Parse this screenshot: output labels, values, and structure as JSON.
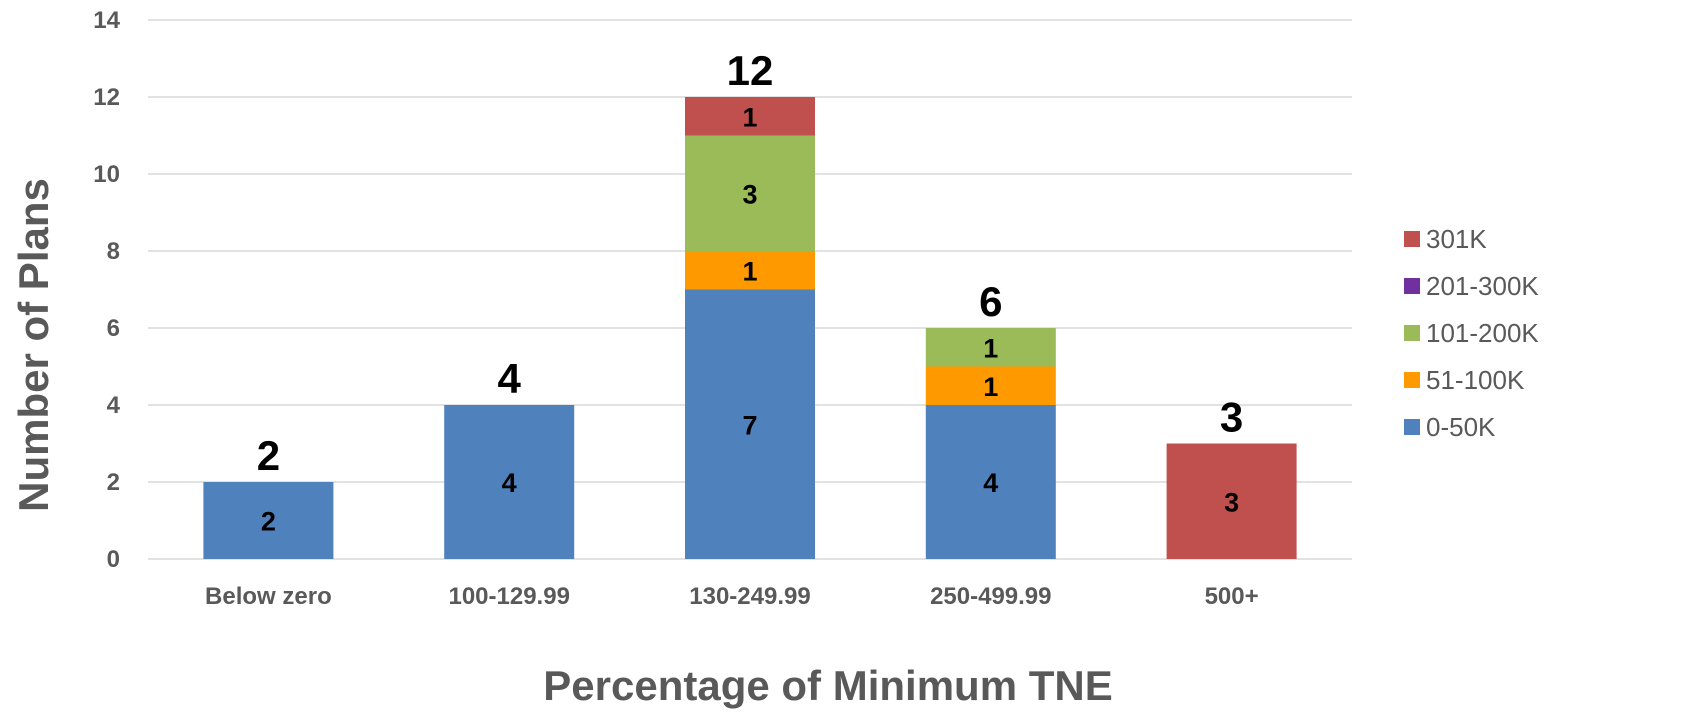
{
  "chart_data": {
    "type": "bar",
    "stacked": true,
    "categories": [
      "Below zero",
      "100-129.99",
      "130-249.99",
      "250-499.99",
      "500+"
    ],
    "series": [
      {
        "name": "0-50K",
        "color": "#4f81bd",
        "values": [
          2,
          4,
          7,
          4,
          0
        ]
      },
      {
        "name": "51-100K",
        "color": "#ff9900",
        "values": [
          0,
          0,
          1,
          1,
          0
        ]
      },
      {
        "name": "101-200K",
        "color": "#9bbb59",
        "values": [
          0,
          0,
          3,
          1,
          0
        ]
      },
      {
        "name": "201-300K",
        "color": "#7030a0",
        "values": [
          0,
          0,
          0,
          0,
          0
        ]
      },
      {
        "name": "301K",
        "color": "#c0504d",
        "values": [
          0,
          0,
          1,
          0,
          3
        ]
      }
    ],
    "totals": [
      2,
      4,
      12,
      6,
      3
    ],
    "xlabel": "Percentage of Minimum TNE",
    "ylabel": "Number of Plans",
    "ylim": [
      0,
      14
    ],
    "yticks": [
      0,
      2,
      4,
      6,
      8,
      10,
      12,
      14
    ],
    "grid": true,
    "legend": {
      "placement": "right",
      "order": [
        "301K",
        "201-300K",
        "101-200K",
        "51-100K",
        "0-50K"
      ]
    }
  }
}
